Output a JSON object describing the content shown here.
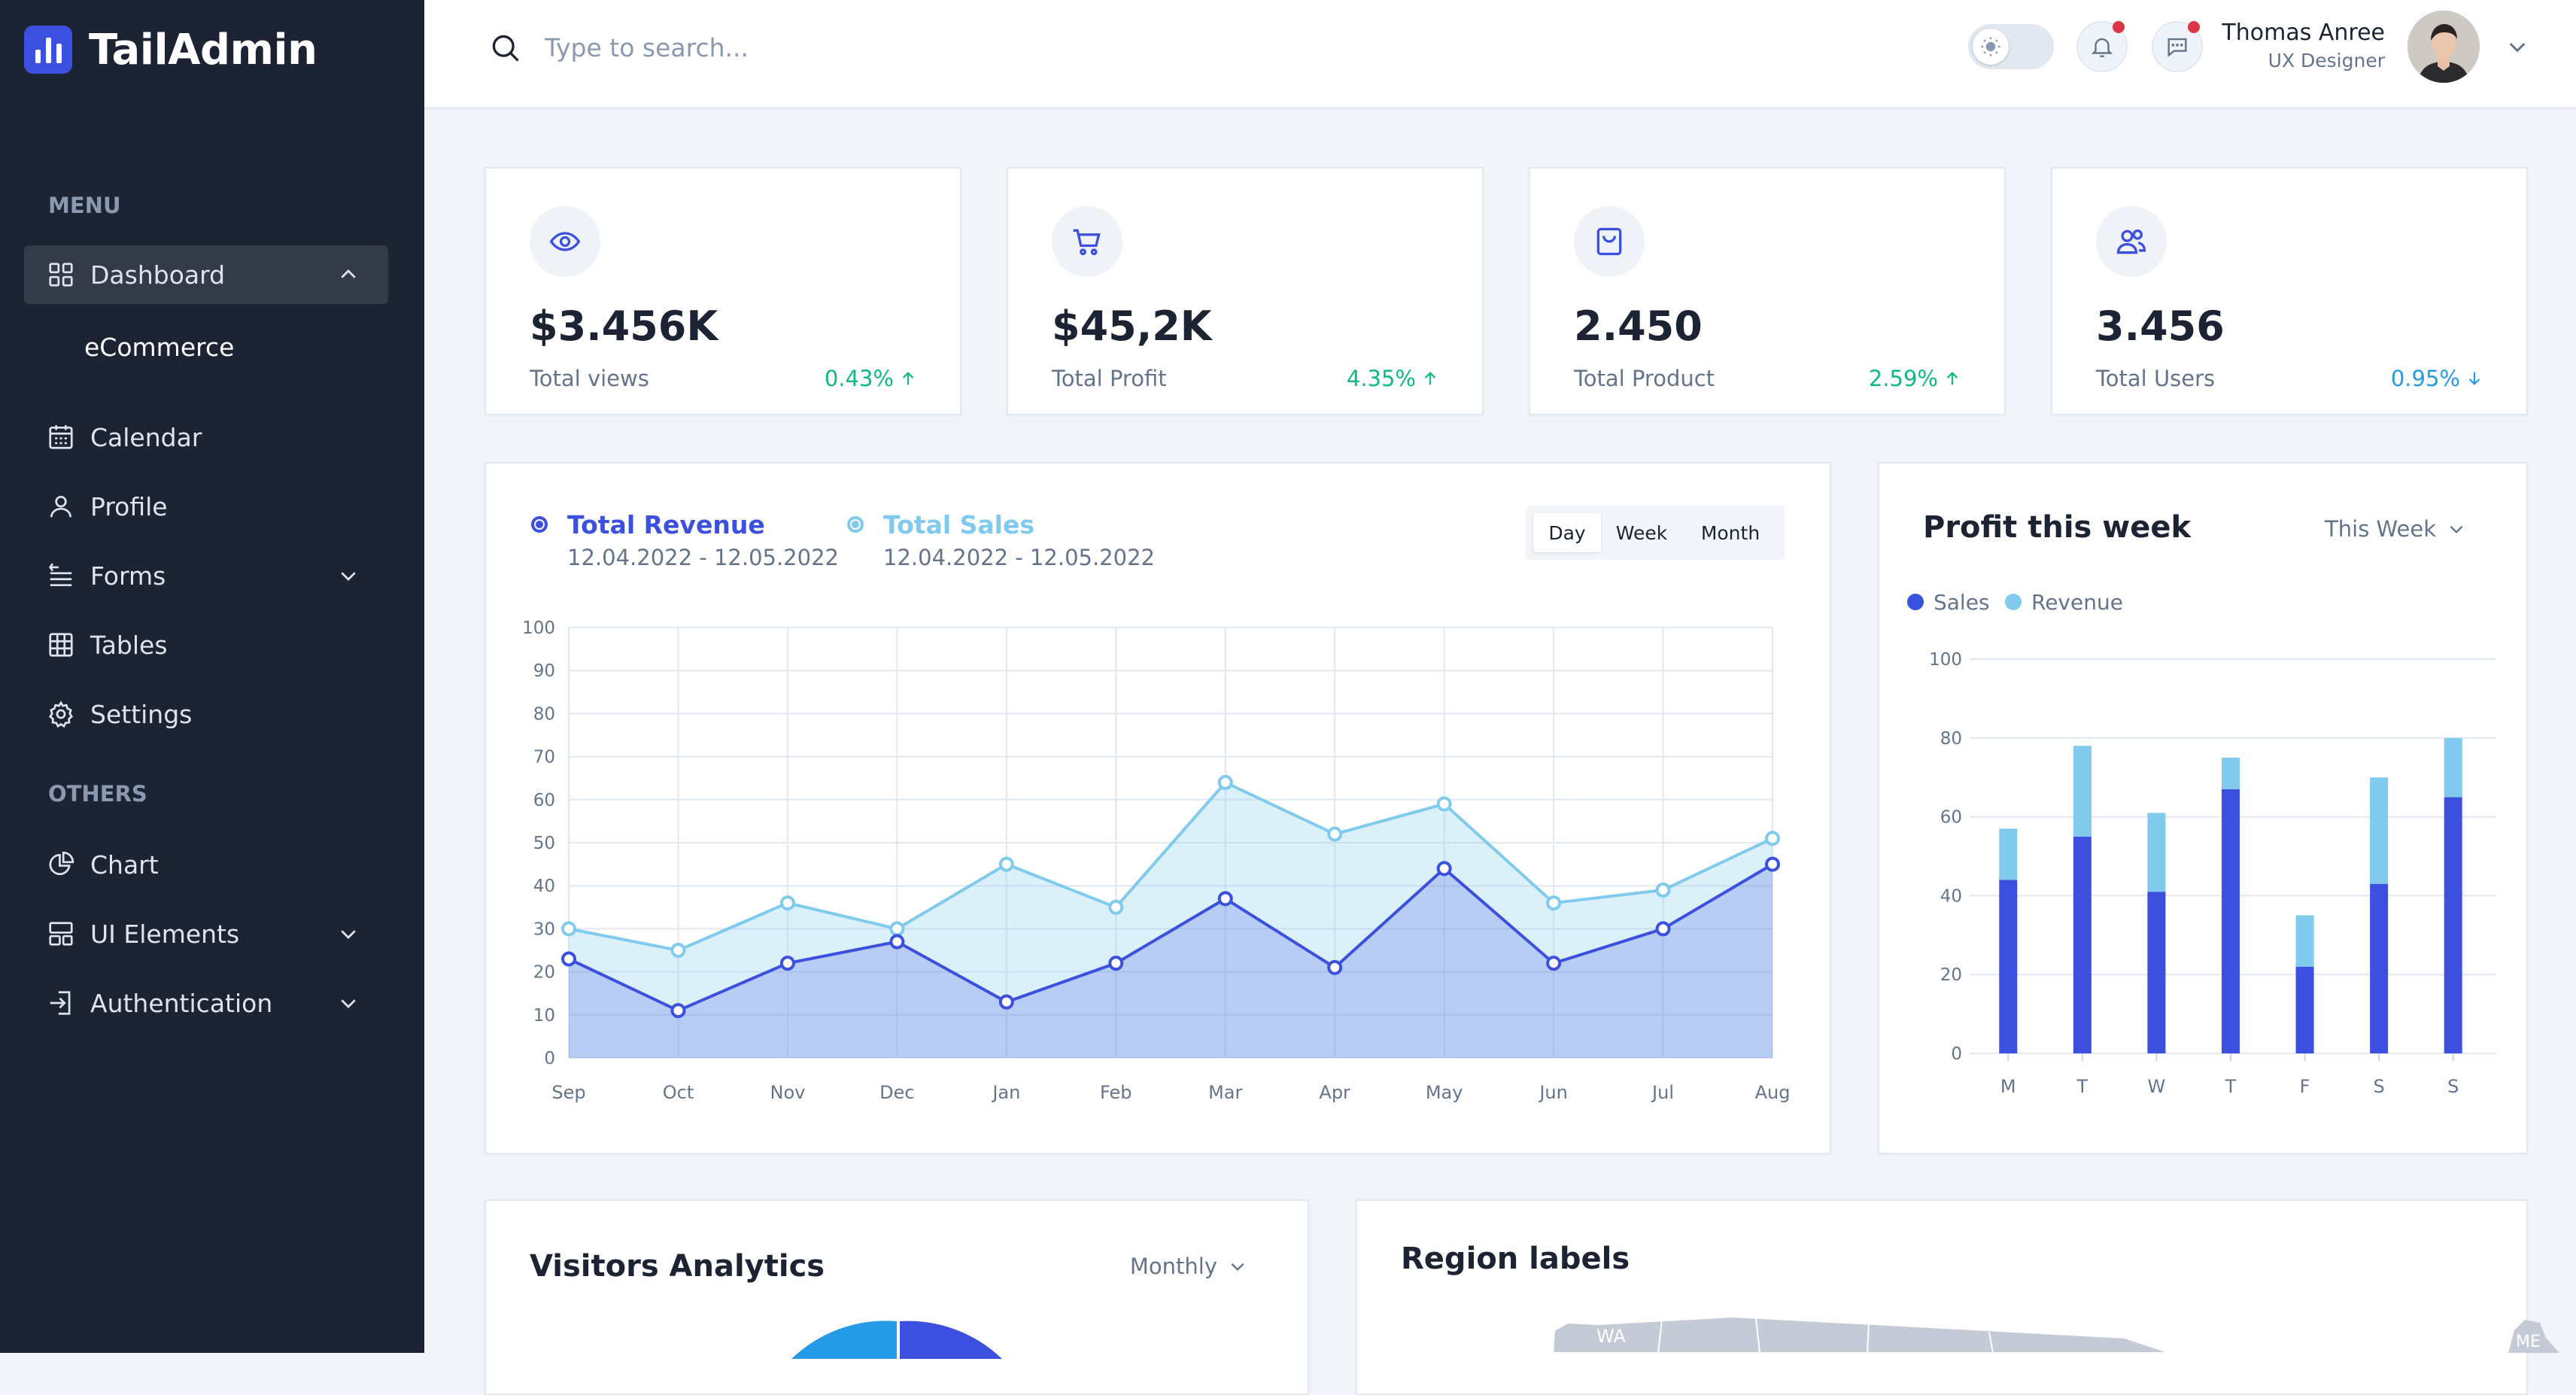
{
  "app": {
    "name": "TailAdmin"
  },
  "sidebar": {
    "menu_heading": "MENU",
    "others_heading": "OTHERS",
    "dashboard": {
      "label": "Dashboard",
      "icon": "grid-icon"
    },
    "dashboard_sub": {
      "label": "eCommerce"
    },
    "items": [
      {
        "label": "Calendar",
        "icon": "calendar-icon"
      },
      {
        "label": "Profile",
        "icon": "user-icon"
      },
      {
        "label": "Forms",
        "icon": "form-icon"
      },
      {
        "label": "Tables",
        "icon": "table-icon"
      },
      {
        "label": "Settings",
        "icon": "gear-icon"
      }
    ],
    "others": [
      {
        "label": "Chart",
        "icon": "pie-chart-icon"
      },
      {
        "label": "UI Elements",
        "icon": "layout-icon"
      },
      {
        "label": "Authentication",
        "icon": "login-icon"
      }
    ]
  },
  "header": {
    "search_placeholder": "Type to search...",
    "user": {
      "name": "Thomas Anree",
      "role": "UX Designer"
    }
  },
  "stats": [
    {
      "value": "$3.456K",
      "label": "Total views",
      "change": "0.43%",
      "direction": "up",
      "icon": "eye-icon",
      "color": "#10b981"
    },
    {
      "value": "$45,2K",
      "label": "Total Profit",
      "change": "4.35%",
      "direction": "up",
      "icon": "cart-icon",
      "color": "#10b981"
    },
    {
      "value": "2.450",
      "label": "Total Product",
      "change": "2.59%",
      "direction": "up",
      "icon": "bag-icon",
      "color": "#10b981"
    },
    {
      "value": "3.456",
      "label": "Total Users",
      "change": "0.95%",
      "direction": "down",
      "icon": "users-icon",
      "color": "#259ae6"
    }
  ],
  "revenue_chart": {
    "legend": [
      {
        "title": "Total Revenue",
        "range": "12.04.2022 - 12.05.2022",
        "color": "#3c50e0"
      },
      {
        "title": "Total Sales",
        "range": "12.04.2022 - 12.05.2022",
        "color": "#80caee"
      }
    ],
    "periods": [
      "Day",
      "Week",
      "Month"
    ],
    "selected_period": "Day"
  },
  "profit_card": {
    "title": "Profit this week",
    "dropdown": "This Week"
  },
  "visitors_card": {
    "title": "Visitors Analytics",
    "dropdown": "Monthly"
  },
  "region_card": {
    "title": "Region labels",
    "map_labels": [
      "WA",
      "ME"
    ]
  },
  "colors": {
    "primary": "#3c50e0",
    "secondary": "#80caee",
    "sidebar": "#1c2434"
  },
  "chart_data": [
    {
      "type": "area",
      "title": "",
      "categories": [
        "Sep",
        "Oct",
        "Nov",
        "Dec",
        "Jan",
        "Feb",
        "Mar",
        "Apr",
        "May",
        "Jun",
        "Jul",
        "Aug"
      ],
      "series": [
        {
          "name": "Total Revenue",
          "values": [
            23,
            11,
            22,
            27,
            13,
            22,
            37,
            21,
            44,
            22,
            30,
            45
          ],
          "color": "#3c50e0"
        },
        {
          "name": "Total Sales",
          "values": [
            30,
            25,
            36,
            30,
            45,
            35,
            64,
            52,
            59,
            36,
            39,
            51
          ],
          "color": "#80caee"
        }
      ],
      "yticks": [
        0,
        10,
        20,
        30,
        40,
        50,
        60,
        70,
        80,
        90,
        100
      ],
      "ylim": [
        0,
        100
      ],
      "grid": true
    },
    {
      "type": "bar",
      "stacked": true,
      "title": "Profit this week",
      "categories": [
        "M",
        "T",
        "W",
        "T",
        "F",
        "S",
        "S"
      ],
      "series": [
        {
          "name": "Sales",
          "values": [
            44,
            55,
            41,
            67,
            22,
            43,
            65
          ],
          "color": "#3c50e0"
        },
        {
          "name": "Revenue",
          "values": [
            13,
            23,
            20,
            8,
            13,
            27,
            15
          ],
          "color": "#80caee"
        }
      ],
      "yticks": [
        0,
        20,
        40,
        60,
        80,
        100
      ],
      "ylim": [
        0,
        100
      ],
      "legend": "top-left"
    }
  ]
}
